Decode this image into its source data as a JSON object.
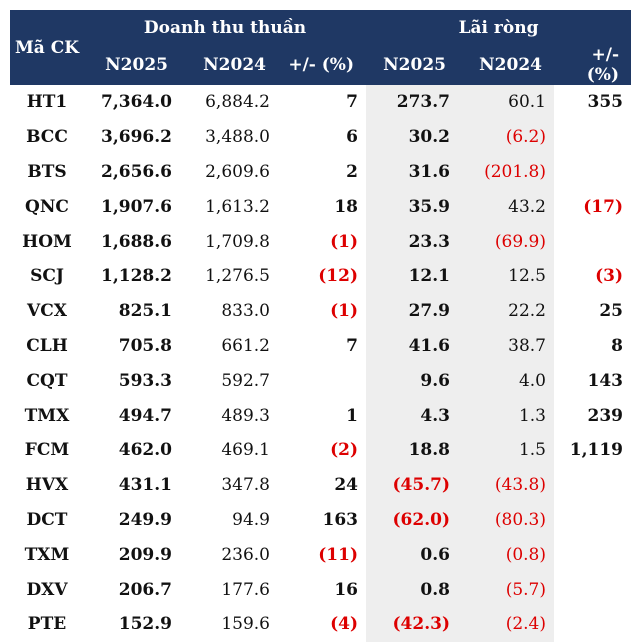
{
  "header": {
    "code_label": "Mã CK",
    "revenue_group": "Doanh thu thuần",
    "profit_group": "Lãi ròng",
    "col_2025": "N2025",
    "col_2024": "N2024",
    "col_change": "+/- (%)"
  },
  "rows": [
    {
      "code": "HT1",
      "rev25": "7,364.0",
      "rev24": "6,884.2",
      "rev_chg": "7",
      "np25": "273.7",
      "np24": "60.1",
      "np_chg": "355"
    },
    {
      "code": "BCC",
      "rev25": "3,696.2",
      "rev24": "3,488.0",
      "rev_chg": "6",
      "np25": "30.2",
      "np24": "(6.2)",
      "np_chg": ""
    },
    {
      "code": "BTS",
      "rev25": "2,656.6",
      "rev24": "2,609.6",
      "rev_chg": "2",
      "np25": "31.6",
      "np24": "(201.8)",
      "np_chg": ""
    },
    {
      "code": "QNC",
      "rev25": "1,907.6",
      "rev24": "1,613.2",
      "rev_chg": "18",
      "np25": "35.9",
      "np24": "43.2",
      "np_chg": "(17)"
    },
    {
      "code": "HOM",
      "rev25": "1,688.6",
      "rev24": "1,709.8",
      "rev_chg": "(1)",
      "np25": "23.3",
      "np24": "(69.9)",
      "np_chg": ""
    },
    {
      "code": "SCJ",
      "rev25": "1,128.2",
      "rev24": "1,276.5",
      "rev_chg": "(12)",
      "np25": "12.1",
      "np24": "12.5",
      "np_chg": "(3)"
    },
    {
      "code": "VCX",
      "rev25": "825.1",
      "rev24": "833.0",
      "rev_chg": "(1)",
      "np25": "27.9",
      "np24": "22.2",
      "np_chg": "25"
    },
    {
      "code": "CLH",
      "rev25": "705.8",
      "rev24": "661.2",
      "rev_chg": "7",
      "np25": "41.6",
      "np24": "38.7",
      "np_chg": "8"
    },
    {
      "code": "CQT",
      "rev25": "593.3",
      "rev24": "592.7",
      "rev_chg": "",
      "np25": "9.6",
      "np24": "4.0",
      "np_chg": "143"
    },
    {
      "code": "TMX",
      "rev25": "494.7",
      "rev24": "489.3",
      "rev_chg": "1",
      "np25": "4.3",
      "np24": "1.3",
      "np_chg": "239"
    },
    {
      "code": "FCM",
      "rev25": "462.0",
      "rev24": "469.1",
      "rev_chg": "(2)",
      "np25": "18.8",
      "np24": "1.5",
      "np_chg": "1,119"
    },
    {
      "code": "HVX",
      "rev25": "431.1",
      "rev24": "347.8",
      "rev_chg": "24",
      "np25": "(45.7)",
      "np24": "(43.8)",
      "np_chg": ""
    },
    {
      "code": "DCT",
      "rev25": "249.9",
      "rev24": "94.9",
      "rev_chg": "163",
      "np25": "(62.0)",
      "np24": "(80.3)",
      "np_chg": ""
    },
    {
      "code": "TXM",
      "rev25": "209.9",
      "rev24": "236.0",
      "rev_chg": "(11)",
      "np25": "0.6",
      "np24": "(0.8)",
      "np_chg": ""
    },
    {
      "code": "DXV",
      "rev25": "206.7",
      "rev24": "177.6",
      "rev_chg": "16",
      "np25": "0.8",
      "np24": "(5.7)",
      "np_chg": ""
    },
    {
      "code": "PTE",
      "rev25": "152.9",
      "rev24": "159.6",
      "rev_chg": "(4)",
      "np25": "(42.3)",
      "np24": "(2.4)",
      "np_chg": ""
    }
  ],
  "colors": {
    "header_bg": "#1f3864",
    "header_text": "#ffffff",
    "negative": "#dd0000",
    "shade": "#eeeeee"
  }
}
